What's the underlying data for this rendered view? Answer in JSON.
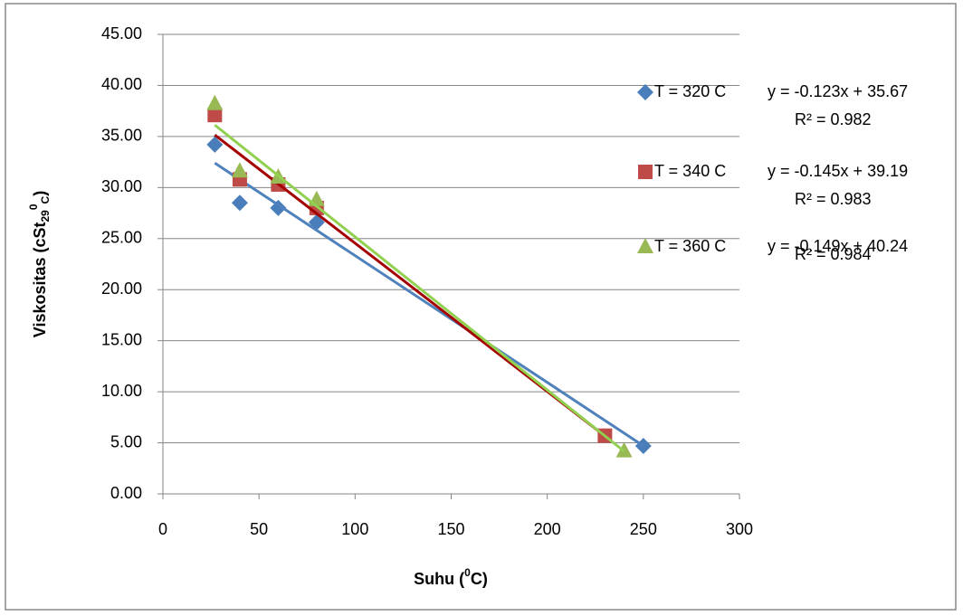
{
  "chart_data": {
    "type": "scatter",
    "xlabel": [
      "Suhu (",
      "0",
      "C)"
    ],
    "ylabel": [
      "Viskositas (cSt",
      "29",
      "0",
      "C",
      ")"
    ],
    "xlim": [
      0,
      300
    ],
    "xticks": [
      0,
      50,
      100,
      150,
      200,
      250,
      300
    ],
    "ylim": [
      0,
      45
    ],
    "yticks": [
      {
        "value": 0,
        "label": "0.00"
      },
      {
        "value": 5,
        "label": "5.00"
      },
      {
        "value": 10,
        "label": "10.00"
      },
      {
        "value": 15,
        "label": "15.00"
      },
      {
        "value": 20,
        "label": "20.00"
      },
      {
        "value": 25,
        "label": "25.00"
      },
      {
        "value": 30,
        "label": "30.00"
      },
      {
        "value": 35,
        "label": "35.00"
      },
      {
        "value": 40,
        "label": "40.00"
      },
      {
        "value": 45,
        "label": "45.00"
      }
    ],
    "grid": true,
    "series": [
      {
        "name": "T = 320 C",
        "color": "#4a7ebb",
        "marker": "diamond",
        "x": [
          27,
          40,
          60,
          80,
          250
        ],
        "values": [
          34.2,
          28.5,
          28,
          26.6,
          4.7
        ],
        "trendline": {
          "color": "#4f81bd",
          "equation": "y = -0.123x + 35.67",
          "r_squared": "R² = 0.982"
        }
      },
      {
        "name": "T = 340 C",
        "color": "#be4b48",
        "marker": "square",
        "x": [
          27,
          40,
          60,
          80,
          230
        ],
        "values": [
          37.1,
          30.8,
          30.3,
          28,
          5.7
        ],
        "trendline": {
          "color": "#a50000",
          "equation": "y = -0.145x + 39.19",
          "r_squared": "R² = 0.983"
        }
      },
      {
        "name": "T = 360 C",
        "color": "#98b954",
        "marker": "triangle",
        "x": [
          27,
          40,
          60,
          80,
          240
        ],
        "values": [
          38.2,
          31.6,
          31,
          28.8,
          4.2
        ],
        "trendline": {
          "color": "#92d050",
          "equation": "y = -0.149x + 40.24",
          "r_squared": "R² = 0.984"
        }
      }
    ]
  }
}
